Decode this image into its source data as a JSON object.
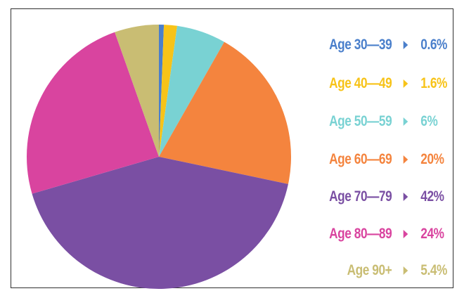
{
  "chart_data": {
    "type": "pie",
    "title": "",
    "legend_placement": "right",
    "slices": [
      {
        "label": "Age 30—39",
        "value": 0.6,
        "value_label": "0.6%",
        "color": "#4a7fcb"
      },
      {
        "label": "Age 40—49",
        "value": 1.6,
        "value_label": "1.6%",
        "color": "#f7c318"
      },
      {
        "label": "Age 50—59",
        "value": 6,
        "value_label": "6%",
        "color": "#79d2d3"
      },
      {
        "label": "Age 60—69",
        "value": 20,
        "value_label": "20%",
        "color": "#f4843e"
      },
      {
        "label": "Age 70—79",
        "value": 42,
        "value_label": "42%",
        "color": "#7a4fa3"
      },
      {
        "label": "Age 80—89",
        "value": 24,
        "value_label": "24%",
        "color": "#d9449f"
      },
      {
        "label": "Age 90+",
        "value": 5.4,
        "value_label": "5.4%",
        "color": "#c9bd73"
      }
    ]
  }
}
